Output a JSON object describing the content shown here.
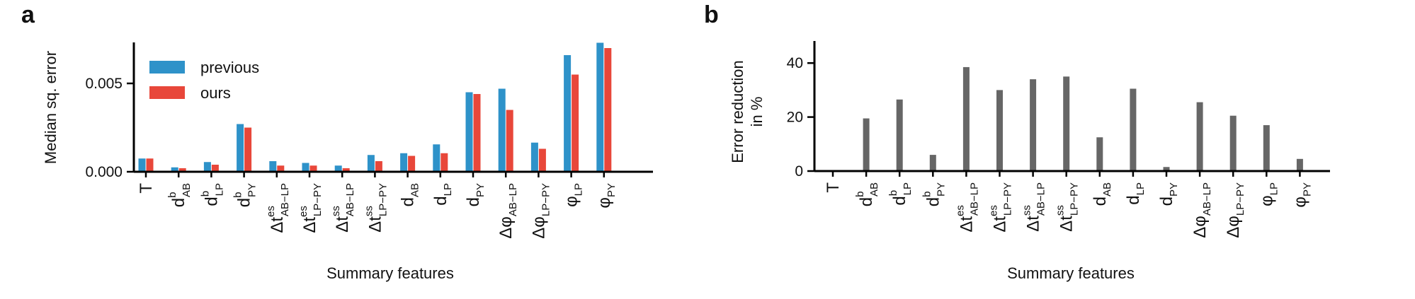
{
  "panels": {
    "a": {
      "letter": "a"
    },
    "b": {
      "letter": "b"
    }
  },
  "chart_data": [
    {
      "type": "bar",
      "title": "",
      "xlabel": "Summary features",
      "ylabel": "Median sq. error",
      "ylim": [
        0,
        0.0078
      ],
      "yticks": [
        0.0,
        0.005
      ],
      "ytick_labels": [
        "0.000",
        "0.005"
      ],
      "grid": false,
      "legend_position": "top-left",
      "categories": [
        {
          "main": "T",
          "sub": "",
          "sup": ""
        },
        {
          "main": "d",
          "sub": "AB",
          "sup": "b"
        },
        {
          "main": "d",
          "sub": "LP",
          "sup": "b"
        },
        {
          "main": "d",
          "sub": "PY",
          "sup": "b"
        },
        {
          "main": "Δt",
          "sub": "AB−LP",
          "sup": "es"
        },
        {
          "main": "Δt",
          "sub": "LP−PY",
          "sup": "es"
        },
        {
          "main": "Δt",
          "sub": "AB−LP",
          "sup": "ss"
        },
        {
          "main": "Δt",
          "sub": "LP−PY",
          "sup": "ss"
        },
        {
          "main": "d",
          "sub": "AB",
          "sup": ""
        },
        {
          "main": "d",
          "sub": "LP",
          "sup": ""
        },
        {
          "main": "d",
          "sub": "PY",
          "sup": ""
        },
        {
          "main": "Δφ",
          "sub": "AB−LP",
          "sup": ""
        },
        {
          "main": "Δφ",
          "sub": "LP−PY",
          "sup": ""
        },
        {
          "main": "φ",
          "sub": "LP",
          "sup": ""
        },
        {
          "main": "φ",
          "sub": "PY",
          "sup": ""
        }
      ],
      "series": [
        {
          "name": "previous",
          "color": "#2e92c9",
          "values": [
            0.00075,
            0.00025,
            0.00055,
            0.0027,
            0.0006,
            0.0005,
            0.00035,
            0.00095,
            0.00105,
            0.00155,
            0.0045,
            0.0047,
            0.00165,
            0.0066,
            0.0073
          ]
        },
        {
          "name": "ours",
          "color": "#e8473a",
          "values": [
            0.00075,
            0.0002,
            0.0004,
            0.0025,
            0.00035,
            0.00035,
            0.0002,
            0.0006,
            0.0009,
            0.00105,
            0.0044,
            0.0035,
            0.0013,
            0.0055,
            0.007
          ]
        }
      ]
    },
    {
      "type": "bar",
      "title": "",
      "xlabel": "Summary features",
      "ylabel": "Error reduction in %",
      "ylabel_lines": [
        "Error reduction",
        "in %"
      ],
      "ylim": [
        0,
        50
      ],
      "yticks": [
        0,
        20,
        40
      ],
      "ytick_labels": [
        "0",
        "20",
        "40"
      ],
      "grid": false,
      "categories": [
        {
          "main": "T",
          "sub": "",
          "sup": ""
        },
        {
          "main": "d",
          "sub": "AB",
          "sup": "b"
        },
        {
          "main": "d",
          "sub": "LP",
          "sup": "b"
        },
        {
          "main": "d",
          "sub": "PY",
          "sup": "b"
        },
        {
          "main": "Δt",
          "sub": "AB−LP",
          "sup": "es"
        },
        {
          "main": "Δt",
          "sub": "LP−PY",
          "sup": "es"
        },
        {
          "main": "Δt",
          "sub": "AB−LP",
          "sup": "ss"
        },
        {
          "main": "Δt",
          "sub": "LP−PY",
          "sup": "ss"
        },
        {
          "main": "d",
          "sub": "AB",
          "sup": ""
        },
        {
          "main": "d",
          "sub": "LP",
          "sup": ""
        },
        {
          "main": "d",
          "sub": "PY",
          "sup": ""
        },
        {
          "main": "Δφ",
          "sub": "AB−LP",
          "sup": ""
        },
        {
          "main": "Δφ",
          "sub": "LP−PY",
          "sup": ""
        },
        {
          "main": "φ",
          "sub": "LP",
          "sup": ""
        },
        {
          "main": "φ",
          "sub": "PY",
          "sup": ""
        }
      ],
      "series": [
        {
          "color": "#666666",
          "values": [
            0,
            19.5,
            26.5,
            6,
            38.5,
            30,
            34,
            35,
            12.5,
            30.5,
            1.5,
            25.5,
            20.5,
            17,
            4.5
          ]
        }
      ]
    }
  ]
}
